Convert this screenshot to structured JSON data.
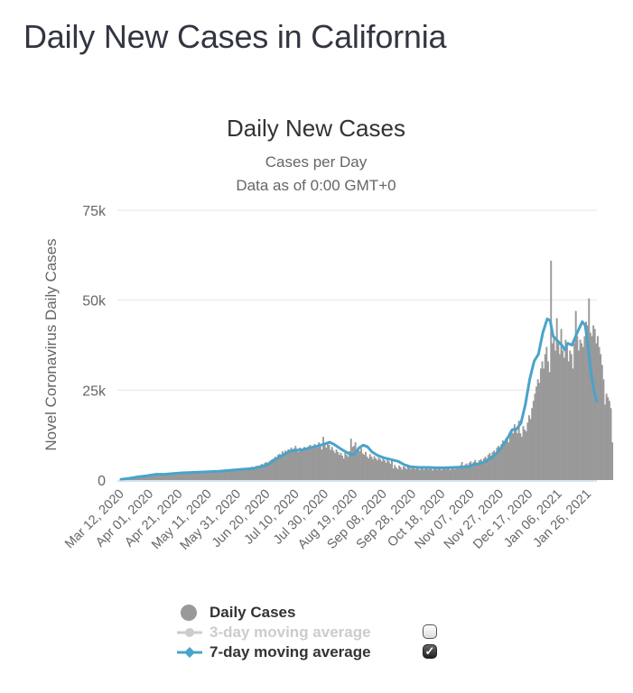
{
  "page": {
    "title": "Daily New Cases in California"
  },
  "chart_data": {
    "type": "bar",
    "title": "Daily New Cases",
    "subtitle_lines": [
      "Cases per Day",
      "Data as of 0:00 GMT+0"
    ],
    "xlabel": "",
    "ylabel": "Novel Coronavirus Daily Cases",
    "ylim": [
      0,
      75000
    ],
    "y_ticks": [
      {
        "value": 0,
        "label": "0"
      },
      {
        "value": 25000,
        "label": "25k"
      },
      {
        "value": 50000,
        "label": "50k"
      },
      {
        "value": 75000,
        "label": "75k"
      }
    ],
    "grid": true,
    "x_start_date": "2020-03-12",
    "x_days": 326,
    "x_ticks": [
      {
        "day": 0,
        "label": "Mar 12, 2020"
      },
      {
        "day": 20,
        "label": "Apr 01, 2020"
      },
      {
        "day": 40,
        "label": "Apr 21, 2020"
      },
      {
        "day": 60,
        "label": "May 11, 2020"
      },
      {
        "day": 80,
        "label": "May 31, 2020"
      },
      {
        "day": 100,
        "label": "Jun 20, 2020"
      },
      {
        "day": 120,
        "label": "Jul 10, 2020"
      },
      {
        "day": 140,
        "label": "Jul 30, 2020"
      },
      {
        "day": 160,
        "label": "Aug 19, 2020"
      },
      {
        "day": 180,
        "label": "Sep 08, 2020"
      },
      {
        "day": 200,
        "label": "Sep 28, 2020"
      },
      {
        "day": 220,
        "label": "Oct 18, 2020"
      },
      {
        "day": 240,
        "label": "Nov 07, 2020"
      },
      {
        "day": 260,
        "label": "Nov 27, 2020"
      },
      {
        "day": 280,
        "label": "Dec 17, 2020"
      },
      {
        "day": 300,
        "label": "Jan 06, 2021"
      },
      {
        "day": 320,
        "label": "Jan 26, 2021"
      }
    ],
    "series": [
      {
        "name": "Daily Cases",
        "type": "bar",
        "color": "#999999",
        "visible": true,
        "values": [
          100,
          150,
          200,
          250,
          300,
          400,
          500,
          600,
          700,
          800,
          900,
          1000,
          1100,
          1150,
          1200,
          1300,
          1400,
          1450,
          1500,
          1550,
          1600,
          1550,
          1500,
          1600,
          1400,
          1700,
          1500,
          1300,
          1600,
          1700,
          1650,
          1500,
          1750,
          1600,
          1450,
          1900,
          1800,
          1700,
          1900,
          2000,
          1800,
          1700,
          2100,
          1900,
          2000,
          1800,
          2200,
          2100,
          1900,
          2200,
          2000,
          1850,
          2200,
          2300,
          2100,
          2000,
          2300,
          2200,
          2100,
          2400,
          2300,
          2100,
          2500,
          2300,
          2200,
          2600,
          2400,
          2500,
          2700,
          2500,
          2300,
          2700,
          2800,
          2600,
          2500,
          2900,
          2800,
          2700,
          3000,
          3100,
          2900,
          2800,
          3300,
          3100,
          3000,
          3400,
          3200,
          3100,
          3500,
          3700,
          3400,
          3500,
          3900,
          4000,
          3800,
          4200,
          4500,
          4300,
          4800,
          5000,
          4700,
          5200,
          5500,
          5800,
          6000,
          6500,
          5800,
          7000,
          7300,
          7000,
          8000,
          7500,
          8200,
          7800,
          8500,
          8000,
          9000,
          8200,
          8800,
          9500,
          8200,
          7800,
          9000,
          8600,
          8300,
          9200,
          8800,
          8400,
          9400,
          9800,
          8700,
          9200,
          10000,
          9500,
          9000,
          10500,
          9800,
          8500,
          12000,
          9800,
          9000,
          10200,
          9800,
          8400,
          9200,
          8200,
          7500,
          8500,
          7800,
          7000,
          7600,
          6800,
          6000,
          7500,
          7000,
          6500,
          8000,
          11500,
          9200,
          9500,
          10500,
          8500,
          9000,
          8000,
          8800,
          7400,
          7000,
          7800,
          6500,
          6000,
          7200,
          6500,
          5800,
          6600,
          6000,
          5500,
          6200,
          5800,
          5200,
          6000,
          5500,
          4800,
          5600,
          5200,
          4500,
          5400,
          3200,
          4200,
          3500,
          3000,
          4000,
          3600,
          2900,
          3800,
          3500,
          3000,
          3900,
          3400,
          3100,
          4000,
          3600,
          3000,
          3700,
          3500,
          2800,
          3600,
          3300,
          2900,
          3700,
          3400,
          3000,
          3800,
          3200,
          2700,
          3500,
          3300,
          2900,
          3600,
          3200,
          2800,
          3500,
          3400,
          3000,
          3700,
          3300,
          2800,
          3600,
          3400,
          3000,
          3900,
          3500,
          3200,
          4100,
          5000,
          3800,
          4200,
          4600,
          4200,
          4800,
          5200,
          4500,
          5000,
          5600,
          4800,
          4500,
          5500,
          5800,
          5200,
          6000,
          6500,
          6000,
          7000,
          7500,
          6800,
          7800,
          8200,
          7500,
          9000,
          9500,
          8500,
          10000,
          11000,
          9800,
          11500,
          12000,
          10500,
          13000,
          14000,
          13000,
          15500,
          14500,
          13000,
          16500,
          13000,
          12000,
          15000,
          14000,
          13500,
          16000,
          18000,
          17000,
          20000,
          22000,
          24000,
          26000,
          28000,
          27000,
          31000,
          33000,
          31000,
          35000,
          37000,
          33000,
          30000,
          61000,
          38000,
          40000,
          36000,
          45000,
          38000,
          35000,
          42000,
          36000,
          34000,
          39000,
          37000,
          33000,
          36000,
          35000,
          31000,
          38000,
          47000,
          40000,
          36000,
          39000,
          38000,
          37000,
          40000,
          44000,
          43000,
          50500,
          41000,
          40000,
          43000,
          42000,
          38000,
          40000,
          37000,
          35000,
          32000,
          28000,
          21000,
          24000,
          23000,
          22000,
          20000,
          10500
        ]
      },
      {
        "name": "3-day moving average",
        "type": "line",
        "color": "#cccccc",
        "visible": false
      },
      {
        "name": "7-day moving average",
        "type": "line",
        "color": "#4aa3c9",
        "visible": true,
        "points": [
          [
            0,
            200
          ],
          [
            6,
            500
          ],
          [
            12,
            900
          ],
          [
            18,
            1200
          ],
          [
            24,
            1600
          ],
          [
            30,
            1600
          ],
          [
            36,
            1800
          ],
          [
            42,
            2000
          ],
          [
            48,
            2100
          ],
          [
            54,
            2200
          ],
          [
            60,
            2300
          ],
          [
            66,
            2400
          ],
          [
            72,
            2600
          ],
          [
            78,
            2800
          ],
          [
            84,
            3000
          ],
          [
            90,
            3200
          ],
          [
            96,
            3700
          ],
          [
            100,
            4200
          ],
          [
            104,
            5200
          ],
          [
            108,
            6300
          ],
          [
            112,
            7200
          ],
          [
            116,
            8100
          ],
          [
            120,
            8300
          ],
          [
            124,
            8400
          ],
          [
            128,
            8800
          ],
          [
            132,
            9200
          ],
          [
            136,
            9600
          ],
          [
            140,
            10100
          ],
          [
            143,
            10500
          ],
          [
            146,
            9900
          ],
          [
            150,
            8800
          ],
          [
            154,
            7800
          ],
          [
            158,
            7000
          ],
          [
            160,
            7200
          ],
          [
            163,
            8900
          ],
          [
            166,
            9700
          ],
          [
            169,
            9200
          ],
          [
            172,
            7800
          ],
          [
            176,
            6800
          ],
          [
            180,
            6200
          ],
          [
            186,
            5600
          ],
          [
            190,
            5200
          ],
          [
            194,
            4300
          ],
          [
            198,
            3700
          ],
          [
            204,
            3500
          ],
          [
            210,
            3500
          ],
          [
            216,
            3400
          ],
          [
            222,
            3400
          ],
          [
            228,
            3500
          ],
          [
            234,
            3600
          ],
          [
            238,
            3600
          ],
          [
            242,
            4400
          ],
          [
            246,
            4600
          ],
          [
            250,
            5200
          ],
          [
            254,
            6200
          ],
          [
            258,
            7800
          ],
          [
            262,
            9800
          ],
          [
            265,
            11800
          ],
          [
            268,
            14000
          ],
          [
            271,
            14200
          ],
          [
            274,
            15800
          ],
          [
            277,
            21000
          ],
          [
            280,
            28000
          ],
          [
            283,
            33000
          ],
          [
            286,
            35000
          ],
          [
            289,
            41000
          ],
          [
            292,
            44800
          ],
          [
            294,
            44300
          ],
          [
            296,
            40000
          ],
          [
            299,
            38700
          ],
          [
            302,
            37500
          ],
          [
            304,
            36200
          ],
          [
            306,
            38000
          ],
          [
            309,
            37500
          ],
          [
            312,
            40500
          ],
          [
            316,
            44000
          ],
          [
            318,
            43000
          ],
          [
            320,
            37000
          ],
          [
            322,
            30000
          ],
          [
            324,
            24500
          ],
          [
            326,
            22000
          ]
        ]
      }
    ],
    "legend": {
      "placement": "bottom",
      "items": [
        {
          "label": "Daily Cases",
          "symbol": "circle",
          "checkbox": null
        },
        {
          "label": "3-day moving average",
          "symbol": "line-circle",
          "checkbox": false
        },
        {
          "label": "7-day moving average",
          "symbol": "line-diamond",
          "checkbox": true
        }
      ]
    }
  }
}
